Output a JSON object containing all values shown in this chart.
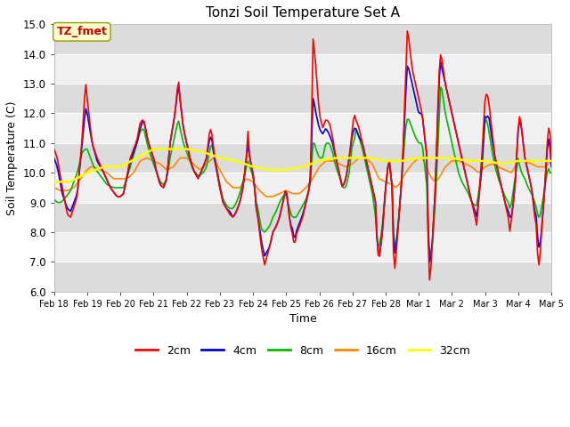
{
  "title": "Tonzi Soil Temperature Set A",
  "xlabel": "Time",
  "ylabel": "Soil Temperature (C)",
  "ylim": [
    6.0,
    15.0
  ],
  "yticks": [
    6.0,
    7.0,
    8.0,
    9.0,
    10.0,
    11.0,
    12.0,
    13.0,
    14.0,
    15.0
  ],
  "xtick_labels": [
    "Feb 18",
    "Feb 19",
    "Feb 20",
    "Feb 21",
    "Feb 22",
    "Feb 23",
    "Feb 24",
    "Feb 25",
    "Feb 26",
    "Feb 27",
    "Feb 28",
    "Mar 1",
    "Mar 2",
    "Mar 3",
    "Mar 4",
    "Mar 5"
  ],
  "colors": {
    "2cm": "#FF0000",
    "4cm": "#0000DD",
    "8cm": "#00BB00",
    "16cm": "#FF8800",
    "32cm": "#FFFF00"
  },
  "annotation_text": "TZ_fmet",
  "annotation_color": "#CC0000",
  "annotation_bg": "#FFFFCC",
  "plot_bg_dark": "#DCDCDC",
  "plot_bg_light": "#F0F0F0",
  "grid_color": "#FFFFFF"
}
